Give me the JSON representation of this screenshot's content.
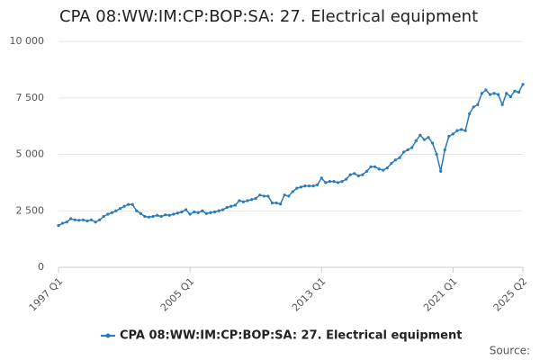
{
  "chart_data": {
    "type": "line",
    "title": "CPA 08:WW:IM:CP:BOP:SA: 27. Electrical equipment",
    "source": "Source:",
    "categories": [
      "1997 Q1",
      null,
      null,
      null,
      null,
      null,
      null,
      null,
      null,
      null,
      null,
      null,
      null,
      null,
      null,
      null,
      null,
      null,
      null,
      null,
      null,
      null,
      null,
      null,
      null,
      null,
      null,
      null,
      null,
      null,
      null,
      null,
      "2005 Q1",
      null,
      null,
      null,
      null,
      null,
      null,
      null,
      null,
      null,
      null,
      null,
      null,
      null,
      null,
      null,
      null,
      null,
      null,
      null,
      null,
      null,
      null,
      null,
      null,
      null,
      null,
      null,
      null,
      null,
      null,
      null,
      "2013 Q1",
      null,
      null,
      null,
      null,
      null,
      null,
      null,
      null,
      null,
      null,
      null,
      null,
      null,
      null,
      null,
      null,
      null,
      null,
      null,
      null,
      null,
      null,
      null,
      null,
      null,
      null,
      null,
      null,
      null,
      null,
      null,
      "2021 Q1",
      null,
      null,
      null,
      null,
      null,
      null,
      null,
      null,
      null,
      null,
      null,
      null,
      null,
      null,
      null,
      null,
      "2025 Q2"
    ],
    "series": [
      {
        "name": "CPA 08:WW:IM:CP:BOP:SA: 27. Electrical equipment",
        "color": "#2b7bb9",
        "values": [
          1850,
          1950,
          2000,
          2150,
          2100,
          2080,
          2100,
          2050,
          2100,
          2000,
          2100,
          2250,
          2350,
          2420,
          2500,
          2600,
          2700,
          2780,
          2780,
          2500,
          2380,
          2250,
          2220,
          2250,
          2300,
          2250,
          2320,
          2300,
          2350,
          2400,
          2450,
          2550,
          2350,
          2450,
          2420,
          2500,
          2380,
          2420,
          2450,
          2500,
          2550,
          2650,
          2700,
          2750,
          2950,
          2900,
          2950,
          3000,
          3050,
          3200,
          3150,
          3150,
          2850,
          2850,
          2800,
          3200,
          3150,
          3350,
          3500,
          3550,
          3600,
          3600,
          3600,
          3650,
          3950,
          3750,
          3800,
          3800,
          3750,
          3800,
          3900,
          4100,
          4150,
          4050,
          4100,
          4250,
          4450,
          4450,
          4350,
          4300,
          4400,
          4600,
          4750,
          4850,
          5100,
          5200,
          5300,
          5600,
          5850,
          5650,
          5750,
          5500,
          5000,
          4250,
          5200,
          5800,
          5900,
          6050,
          6100,
          6050,
          6800,
          7100,
          7200,
          7700,
          7850,
          7650,
          7700,
          7650,
          7200,
          7700,
          7550,
          7800,
          7750,
          8100
        ]
      }
    ],
    "ylim": [
      0,
      10000
    ],
    "yticks": [
      {
        "value": 0,
        "label": "0"
      },
      {
        "value": 2500,
        "label": "2 500"
      },
      {
        "value": 5000,
        "label": "5 000"
      },
      {
        "value": 7500,
        "label": "7 500"
      },
      {
        "value": 10000,
        "label": "10 000"
      }
    ],
    "grid": true,
    "legend": "bottom"
  }
}
